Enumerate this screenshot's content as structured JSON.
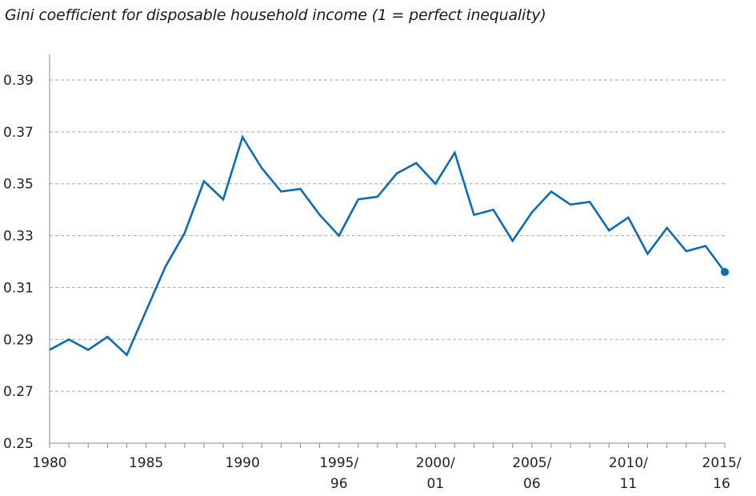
{
  "chart_data": {
    "type": "line",
    "title": "Gini coefficient for disposable household income (1 = perfect inequality)",
    "xlabel": "",
    "ylabel": "",
    "ylim": [
      0.25,
      0.4
    ],
    "yticks": [
      "0.25",
      "0.27",
      "0.29",
      "0.31",
      "0.33",
      "0.35",
      "0.37",
      "0.39"
    ],
    "xticks": [
      {
        "year": 1980,
        "lines": [
          "1980"
        ]
      },
      {
        "year": 1985,
        "lines": [
          "1985"
        ]
      },
      {
        "year": 1990,
        "lines": [
          "1990"
        ]
      },
      {
        "year": 1995,
        "lines": [
          "1995/",
          "96"
        ]
      },
      {
        "year": 2000,
        "lines": [
          "2000/",
          "01"
        ]
      },
      {
        "year": 2005,
        "lines": [
          "2005/",
          "06"
        ]
      },
      {
        "year": 2010,
        "lines": [
          "2010/",
          "11"
        ]
      },
      {
        "year": 2015,
        "lines": [
          "2015/",
          "16"
        ]
      }
    ],
    "grid": "horizontal dashed",
    "line_color": "#0b6bb5",
    "series": [
      {
        "x": [
          1980,
          1981,
          1982,
          1983,
          1984,
          1985,
          1986,
          1987,
          1988,
          1989,
          1990,
          1991,
          1992,
          1993,
          1994,
          1995,
          1996,
          1997,
          1998,
          1999,
          2000,
          2001,
          2002,
          2003,
          2004,
          2005,
          2006,
          2007,
          2008,
          2009,
          2010,
          2011,
          2012,
          2013,
          2014,
          2015
        ],
        "values": [
          0.286,
          0.29,
          0.286,
          0.291,
          0.284,
          0.301,
          0.318,
          0.331,
          0.351,
          0.344,
          0.368,
          0.356,
          0.347,
          0.348,
          0.338,
          0.33,
          0.344,
          0.345,
          0.354,
          0.358,
          0.35,
          0.362,
          0.338,
          0.34,
          0.328,
          0.339,
          0.347,
          0.342,
          0.343,
          0.332,
          0.337,
          0.323,
          0.333,
          0.324,
          0.326,
          0.316
        ]
      }
    ]
  }
}
